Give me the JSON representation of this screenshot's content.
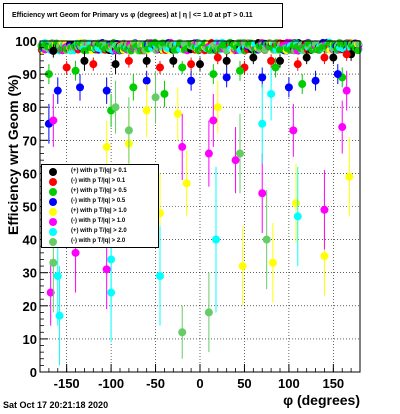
{
  "title": "Efficiency wrt Geom for Primary vs φ (degrees) at | η | <= 1.0 at pT > 0.11",
  "timestamp": "Sat Oct 17 20:21:18 2020",
  "chart_data": {
    "type": "scatter",
    "title": "Efficiency wrt Geom for Primary vs φ (degrees) at | η | <= 1.0 at pT > 0.11",
    "xlabel": "φ (degrees)",
    "ylabel": "Efficiency wrt Geom (%)",
    "xlim": [
      -180,
      180
    ],
    "ylim": [
      0,
      100
    ],
    "xticks": [
      -150,
      -100,
      -50,
      0,
      50,
      100,
      150
    ],
    "yticks": [
      0,
      10,
      20,
      30,
      40,
      50,
      60,
      70,
      80,
      90,
      100
    ],
    "grid": true,
    "legend_position": "center-left",
    "series": [
      {
        "name": "(+) with p T/|q| > 0.1",
        "color": "#000000",
        "points": [
          [
            -165,
            97,
            2
          ],
          [
            -130,
            94,
            3
          ],
          [
            -95,
            93,
            3
          ],
          [
            -60,
            94,
            2
          ],
          [
            -30,
            94,
            2
          ],
          [
            0,
            93,
            2
          ],
          [
            30,
            94,
            2
          ],
          [
            60,
            95,
            2
          ],
          [
            90,
            94,
            2
          ],
          [
            120,
            95,
            2
          ],
          [
            150,
            95,
            2
          ],
          [
            170,
            96,
            2
          ]
        ]
      },
      {
        "name": "(-) with p T/|q| > 0.1",
        "color": "#ff0000",
        "points": [
          [
            -150,
            92,
            2
          ],
          [
            -120,
            93,
            2
          ],
          [
            -80,
            94,
            2
          ],
          [
            -45,
            92,
            2
          ],
          [
            -10,
            93,
            2
          ],
          [
            20,
            95,
            2
          ],
          [
            50,
            92,
            2
          ],
          [
            80,
            94,
            2
          ],
          [
            110,
            93,
            2
          ],
          [
            140,
            95,
            2
          ],
          [
            165,
            96,
            2
          ]
        ]
      },
      {
        "name": "(+) with p T/|q| > 0.5",
        "color": "#00cc00",
        "points": [
          [
            -170,
            90,
            3
          ],
          [
            -140,
            91,
            3
          ],
          [
            -100,
            79,
            5
          ],
          [
            -75,
            86,
            4
          ],
          [
            -40,
            84,
            4
          ],
          [
            -20,
            92,
            2
          ],
          [
            15,
            90,
            3
          ],
          [
            45,
            91,
            3
          ],
          [
            85,
            92,
            3
          ],
          [
            115,
            87,
            3
          ],
          [
            160,
            89,
            3
          ]
        ]
      },
      {
        "name": "(-) with p T/|q| > 0.5",
        "color": "#0000ff",
        "points": [
          [
            -170,
            75,
            6
          ],
          [
            -160,
            85,
            4
          ],
          [
            -135,
            86,
            4
          ],
          [
            -105,
            85,
            4
          ],
          [
            -60,
            88,
            3
          ],
          [
            -10,
            88,
            3
          ],
          [
            30,
            89,
            3
          ],
          [
            70,
            89,
            3
          ],
          [
            100,
            86,
            3
          ],
          [
            130,
            88,
            3
          ],
          [
            155,
            90,
            3
          ]
        ]
      },
      {
        "name": "(+) with p T/|q| > 1.0",
        "color": "#ffff00",
        "points": [
          [
            -105,
            68,
            8
          ],
          [
            -80,
            69,
            10
          ],
          [
            -60,
            79,
            8
          ],
          [
            -45,
            48,
            12
          ],
          [
            -25,
            78,
            8
          ],
          [
            -15,
            57,
            10
          ],
          [
            20,
            80,
            8
          ],
          [
            48,
            32,
            12
          ],
          [
            82,
            33,
            12
          ],
          [
            108,
            51,
            12
          ],
          [
            140,
            35,
            12
          ],
          [
            168,
            59,
            12
          ]
        ]
      },
      {
        "name": "(-) with p T/|q| > 1.0",
        "color": "#ff00ff",
        "points": [
          [
            -168,
            24,
            10
          ],
          [
            -165,
            76,
            8
          ],
          [
            -140,
            36,
            12
          ],
          [
            -105,
            31,
            12
          ],
          [
            -20,
            68,
            10
          ],
          [
            10,
            66,
            10
          ],
          [
            15,
            76,
            8
          ],
          [
            40,
            64,
            10
          ],
          [
            70,
            54,
            12
          ],
          [
            105,
            73,
            8
          ],
          [
            140,
            49,
            12
          ],
          [
            160,
            74,
            8
          ],
          [
            165,
            85,
            6
          ]
        ]
      },
      {
        "name": "(+) with p T/|q| > 2.0",
        "color": "#00ffff",
        "points": [
          [
            -160,
            29,
            15
          ],
          [
            -158,
            17,
            15
          ],
          [
            -100,
            34,
            15
          ],
          [
            -100,
            24,
            15
          ],
          [
            -45,
            29,
            15
          ],
          [
            18,
            40,
            22
          ],
          [
            70,
            75,
            12
          ],
          [
            80,
            84,
            8
          ],
          [
            110,
            47,
            15
          ]
        ]
      },
      {
        "name": "(-) with p T/|q| > 2.0",
        "color": "#66cc66",
        "points": [
          [
            -165,
            33,
            15
          ],
          [
            -95,
            80,
            8
          ],
          [
            -80,
            73,
            10
          ],
          [
            -50,
            83,
            8
          ],
          [
            -20,
            12,
            8
          ],
          [
            10,
            18,
            12
          ],
          [
            45,
            66,
            12
          ],
          [
            75,
            40,
            15
          ]
        ]
      }
    ]
  }
}
